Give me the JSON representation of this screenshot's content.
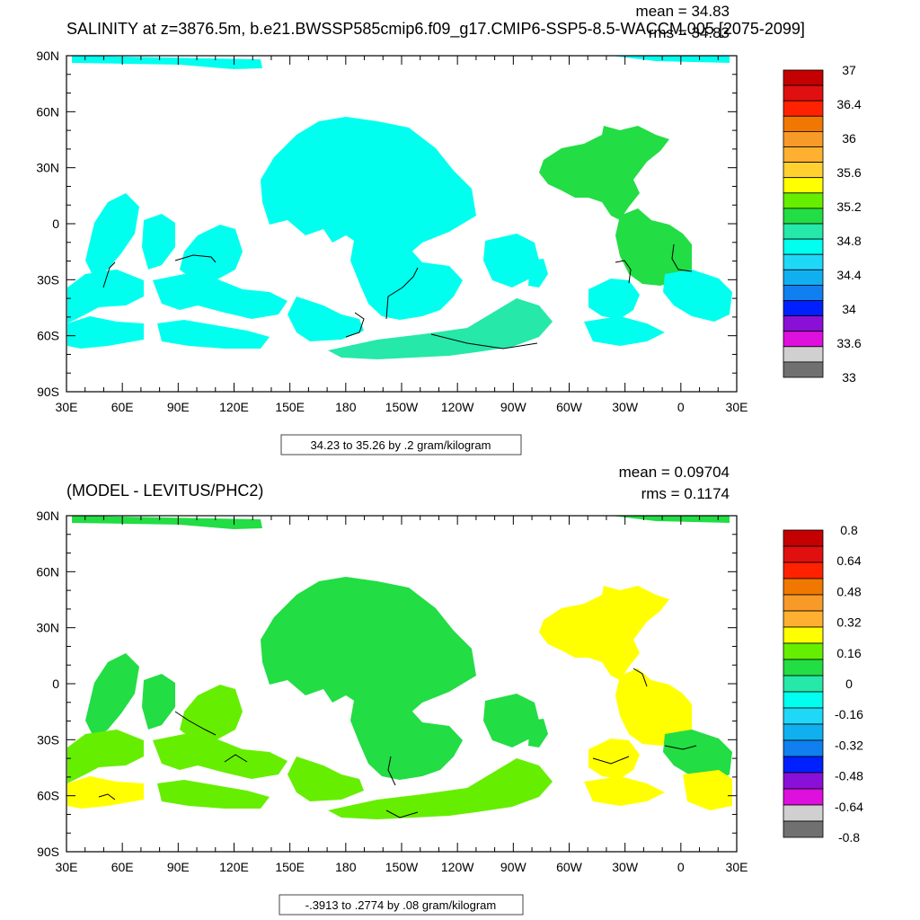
{
  "panels": [
    {
      "title": "SALINITY at z=3876.5m, b.e21.BWSSP585cmip6.f09_g17.CMIP6-SSP5-8.5-WACCM.005 [2075-2099]",
      "stats": {
        "mean": "mean = 34.83",
        "rms": "rms = 34.83"
      },
      "range_label": "34.23 to 35.26 by .2 gram/kilogram",
      "y_ticks": [
        "90N",
        "60N",
        "30N",
        "0",
        "30S",
        "60S",
        "90S"
      ],
      "x_ticks": [
        "30E",
        "60E",
        "90E",
        "120E",
        "150E",
        "180",
        "150W",
        "120W",
        "90W",
        "60W",
        "30W",
        "0",
        "30E"
      ],
      "colorbar": {
        "labels": [
          "37",
          "36.4",
          "36",
          "35.6",
          "35.2",
          "34.8",
          "34.4",
          "34",
          "33.6",
          "33"
        ],
        "colors": [
          "#c40000",
          "#e01010",
          "#ff2200",
          "#f07800",
          "#f89a28",
          "#ffb030",
          "#ffd030",
          "#ffff00",
          "#66ee00",
          "#22dd44",
          "#26e8a8",
          "#00ffee",
          "#1fd8f8",
          "#10b0f0",
          "#1080f0",
          "#0020ff",
          "#8a10d8",
          "#dd10dd",
          "#d0d0d0",
          "#707070"
        ]
      },
      "colors": {
        "ocean_main": "#00ffee",
        "ocean_alt": "#26e8a8",
        "ocean_pos": "#22dd44"
      }
    },
    {
      "title": "(MODEL - LEVITUS/PHC2)",
      "stats": {
        "mean": "mean = 0.09704",
        "rms": "rms = 0.1174"
      },
      "range_label": "-.3913 to .2774 by .08 gram/kilogram",
      "y_ticks": [
        "90N",
        "60N",
        "30N",
        "0",
        "30S",
        "60S",
        "90S"
      ],
      "x_ticks": [
        "30E",
        "60E",
        "90E",
        "120E",
        "150E",
        "180",
        "150W",
        "120W",
        "90W",
        "60W",
        "30W",
        "0",
        "30E"
      ],
      "colorbar": {
        "labels": [
          "0.8",
          "0.64",
          "0.48",
          "0.32",
          "0.16",
          "0",
          "-0.16",
          "-0.32",
          "-0.48",
          "-0.64",
          "-0.8"
        ],
        "colors": [
          "#c40000",
          "#e01010",
          "#ff2200",
          "#f07800",
          "#f89a28",
          "#ffb030",
          "#ffff00",
          "#66ee00",
          "#22dd44",
          "#26e8a8",
          "#00ffee",
          "#1fd8f8",
          "#10b0f0",
          "#1080f0",
          "#0020ff",
          "#8a10d8",
          "#dd10dd",
          "#d0d0d0",
          "#707070"
        ]
      },
      "colors": {
        "ocean_main": "#22dd44",
        "ocean_alt": "#66ee00",
        "ocean_pos": "#ffff00"
      }
    }
  ],
  "chart_data": [
    {
      "type": "heatmap",
      "title": "SALINITY at z=3876.5m, b.e21.BWSSP585cmip6.f09_g17.CMIP6-SSP5-8.5-WACCM.005 [2075-2099]",
      "variable": "salinity",
      "units": "gram/kilogram",
      "mean": 34.83,
      "rms": 34.83,
      "contour_min": 34.23,
      "contour_max": 35.26,
      "contour_interval": 0.2,
      "xlim": [
        30,
        390
      ],
      "ylim": [
        -90,
        90
      ],
      "colorbar_ticks": [
        37,
        36.4,
        36,
        35.6,
        35.2,
        34.8,
        34.4,
        34,
        33.6,
        33
      ]
    },
    {
      "type": "heatmap",
      "title": "(MODEL - LEVITUS/PHC2)",
      "variable": "salinity difference",
      "units": "gram/kilogram",
      "mean": 0.09704,
      "rms": 0.1174,
      "contour_min": -0.3913,
      "contour_max": 0.2774,
      "contour_interval": 0.08,
      "xlim": [
        30,
        390
      ],
      "ylim": [
        -90,
        90
      ],
      "colorbar_ticks": [
        0.8,
        0.64,
        0.48,
        0.32,
        0.16,
        0,
        -0.16,
        -0.32,
        -0.48,
        -0.64,
        -0.8
      ]
    }
  ]
}
